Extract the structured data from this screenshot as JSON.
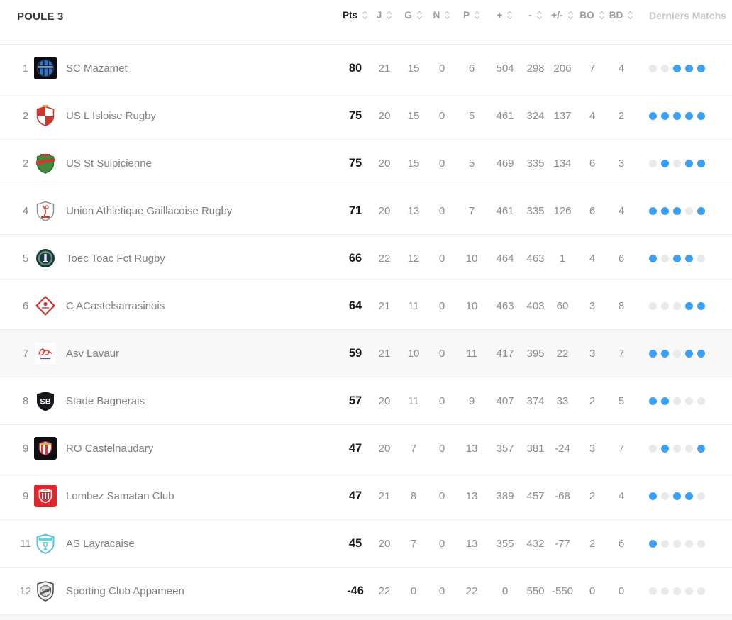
{
  "title": "POULE 3",
  "columns": [
    {
      "key": "pts",
      "label": "Pts",
      "sortable": true
    },
    {
      "key": "j",
      "label": "J",
      "sortable": true
    },
    {
      "key": "g",
      "label": "G",
      "sortable": true
    },
    {
      "key": "n",
      "label": "N",
      "sortable": true
    },
    {
      "key": "p",
      "label": "P",
      "sortable": true
    },
    {
      "key": "plus",
      "label": "+",
      "sortable": true
    },
    {
      "key": "minus",
      "label": "-",
      "sortable": true
    },
    {
      "key": "diff",
      "label": "+/-",
      "sortable": true
    },
    {
      "key": "bo",
      "label": "BO",
      "sortable": true
    },
    {
      "key": "bd",
      "label": "BD",
      "sortable": true
    },
    {
      "key": "derniers",
      "label": "Derniers Matchs",
      "sortable": false
    }
  ],
  "colors": {
    "dot_blue": "#3ba1f6",
    "dot_gray": "#e8e9eb",
    "divider": "#ededef",
    "highlight_row": "#f8f8f9",
    "pts_text": "#1b1b1f",
    "muted_text": "#8c8c91"
  },
  "teams": [
    {
      "rank": "1",
      "name": "SC Mazamet",
      "pts": "80",
      "j": "21",
      "g": "15",
      "n": "0",
      "p": "6",
      "plus": "504",
      "minus": "298",
      "diff": "206",
      "bo": "7",
      "bd": "4",
      "last5": [
        "g",
        "g",
        "b",
        "b",
        "b"
      ],
      "highlight": false,
      "logo": {
        "type": "mazamet",
        "bg": "#0c0d10",
        "fg": "#2e77d0"
      }
    },
    {
      "rank": "2",
      "name": "US L Isloise Rugby",
      "pts": "75",
      "j": "20",
      "g": "15",
      "n": "0",
      "p": "5",
      "plus": "461",
      "minus": "324",
      "diff": "137",
      "bo": "4",
      "bd": "2",
      "last5": [
        "b",
        "b",
        "b",
        "b",
        "b"
      ],
      "highlight": false,
      "logo": {
        "type": "isloise",
        "bg": "#ffffff",
        "fg": "#c63832"
      }
    },
    {
      "rank": "2",
      "name": "US St Sulpicienne",
      "pts": "75",
      "j": "20",
      "g": "15",
      "n": "0",
      "p": "5",
      "plus": "469",
      "minus": "335",
      "diff": "134",
      "bo": "6",
      "bd": "3",
      "last5": [
        "g",
        "b",
        "g",
        "b",
        "b"
      ],
      "highlight": false,
      "logo": {
        "type": "sulpicienne",
        "bg": "#ffffff",
        "fg": "#3e8c3c",
        "fg2": "#c93a33"
      }
    },
    {
      "rank": "4",
      "name": "Union Athletique Gaillacoise Rugby",
      "pts": "71",
      "j": "20",
      "g": "13",
      "n": "0",
      "p": "7",
      "plus": "461",
      "minus": "335",
      "diff": "126",
      "bo": "6",
      "bd": "4",
      "last5": [
        "b",
        "b",
        "b",
        "g",
        "b"
      ],
      "highlight": false,
      "logo": {
        "type": "gaillacoise",
        "bg": "#ffffff",
        "fg": "#8e949c",
        "fg2": "#c24038"
      }
    },
    {
      "rank": "5",
      "name": "Toec Toac Fct Rugby",
      "pts": "66",
      "j": "22",
      "g": "12",
      "n": "0",
      "p": "10",
      "plus": "464",
      "minus": "463",
      "diff": "1",
      "bo": "4",
      "bd": "6",
      "last5": [
        "b",
        "g",
        "b",
        "b",
        "g"
      ],
      "highlight": false,
      "logo": {
        "type": "toec",
        "bg": "#20304c",
        "fg": "#4f9e5c"
      }
    },
    {
      "rank": "6",
      "name": "C ACastelsarrasinois",
      "pts": "64",
      "j": "21",
      "g": "11",
      "n": "0",
      "p": "10",
      "plus": "463",
      "minus": "403",
      "diff": "60",
      "bo": "3",
      "bd": "8",
      "last5": [
        "g",
        "g",
        "g",
        "b",
        "b"
      ],
      "highlight": false,
      "logo": {
        "type": "castelsarrasinois",
        "bg": "#ffffff",
        "fg": "#cd3a34"
      }
    },
    {
      "rank": "7",
      "name": "Asv Lavaur",
      "pts": "59",
      "j": "21",
      "g": "10",
      "n": "0",
      "p": "11",
      "plus": "417",
      "minus": "395",
      "diff": "22",
      "bo": "3",
      "bd": "7",
      "last5": [
        "b",
        "b",
        "g",
        "b",
        "b"
      ],
      "highlight": true,
      "logo": {
        "type": "lavaur",
        "bg": "#ffffff",
        "fg": "#e23530",
        "fg2": "#4b55a8"
      }
    },
    {
      "rank": "8",
      "name": "Stade Bagnerais",
      "pts": "57",
      "j": "20",
      "g": "11",
      "n": "0",
      "p": "9",
      "plus": "407",
      "minus": "374",
      "diff": "33",
      "bo": "2",
      "bd": "5",
      "last5": [
        "b",
        "b",
        "g",
        "g",
        "g"
      ],
      "highlight": false,
      "logo": {
        "type": "bagnerais",
        "bg": "#17171c",
        "fg": "#ffffff"
      }
    },
    {
      "rank": "9",
      "name": "RO Castelnaudary",
      "pts": "47",
      "j": "20",
      "g": "7",
      "n": "0",
      "p": "13",
      "plus": "357",
      "minus": "381",
      "diff": "-24",
      "bo": "3",
      "bd": "7",
      "last5": [
        "g",
        "b",
        "g",
        "g",
        "b"
      ],
      "highlight": false,
      "logo": {
        "type": "castelnaudary",
        "bg": "#101014",
        "fg": "#cf3a35",
        "fg2": "#e5b33c"
      }
    },
    {
      "rank": "9",
      "name": "Lombez Samatan Club",
      "pts": "47",
      "j": "21",
      "g": "8",
      "n": "0",
      "p": "13",
      "plus": "389",
      "minus": "457",
      "diff": "-68",
      "bo": "2",
      "bd": "4",
      "last5": [
        "b",
        "g",
        "b",
        "b",
        "g"
      ],
      "highlight": false,
      "logo": {
        "type": "lombez",
        "bg": "#e2262c",
        "fg": "#ffffff"
      }
    },
    {
      "rank": "11",
      "name": "AS Layracaise",
      "pts": "45",
      "j": "20",
      "g": "7",
      "n": "0",
      "p": "13",
      "plus": "355",
      "minus": "432",
      "diff": "-77",
      "bo": "2",
      "bd": "6",
      "last5": [
        "b",
        "g",
        "g",
        "g",
        "g"
      ],
      "highlight": false,
      "logo": {
        "type": "layracaise",
        "bg": "#ffffff",
        "fg": "#59c4de"
      }
    },
    {
      "rank": "12",
      "name": "Sporting Club Appameen",
      "pts": "-46",
      "j": "22",
      "g": "0",
      "n": "0",
      "p": "22",
      "plus": "0",
      "minus": "550",
      "diff": "-550",
      "bo": "0",
      "bd": "0",
      "last5": [
        "g",
        "g",
        "g",
        "g",
        "g"
      ],
      "highlight": false,
      "logo": {
        "type": "appameen",
        "bg": "#ffffff",
        "fg": "#4d4d4d"
      }
    }
  ]
}
